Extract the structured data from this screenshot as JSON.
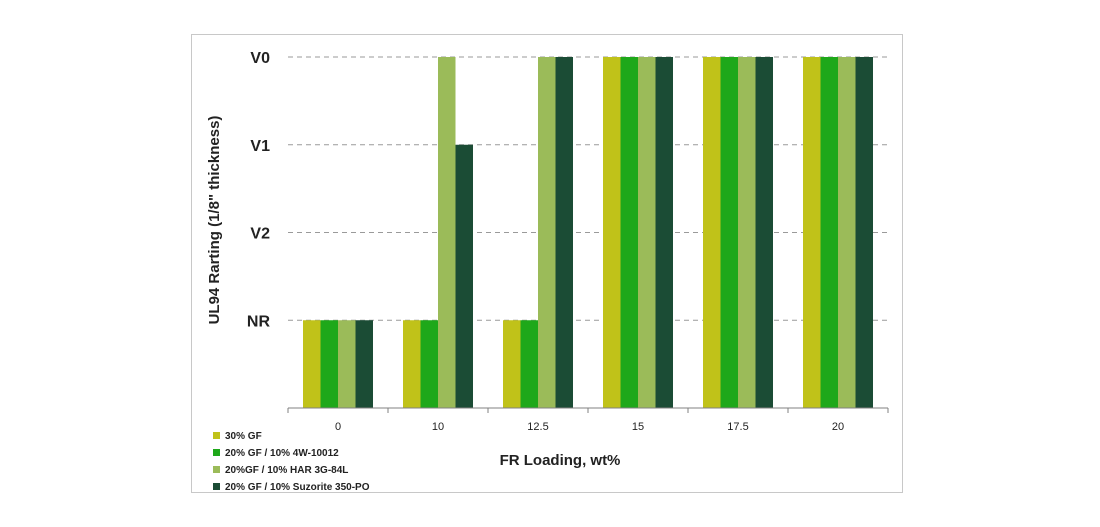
{
  "chart_data": {
    "type": "bar",
    "categories": [
      "0",
      "10",
      "12.5",
      "15",
      "17.5",
      "20"
    ],
    "y_levels": [
      "NR",
      "V2",
      "V1",
      "V0"
    ],
    "ylim": [
      -1,
      3
    ],
    "xlabel": "FR Loading, wt%",
    "ylabel": "UL94 Rarting (1/8\" thickness)",
    "grid": "horizontal dashed",
    "legend_position": "bottom-left",
    "series": [
      {
        "name": "30% GF",
        "color": "#c0c219",
        "values": [
          0,
          0,
          0,
          3,
          3,
          3
        ]
      },
      {
        "name": "20% GF / 10% 4W-10012",
        "color": "#1ea81a",
        "values": [
          0,
          0,
          0,
          3,
          3,
          3
        ]
      },
      {
        "name": "20%GF / 10% HAR 3G-84L",
        "color": "#9bbb59",
        "values": [
          0,
          3,
          3,
          3,
          3,
          3
        ]
      },
      {
        "name": "20% GF / 10% Suzorite 350-PO",
        "color": "#1b4c35",
        "values": [
          0,
          2,
          3,
          3,
          3,
          3
        ]
      }
    ]
  }
}
